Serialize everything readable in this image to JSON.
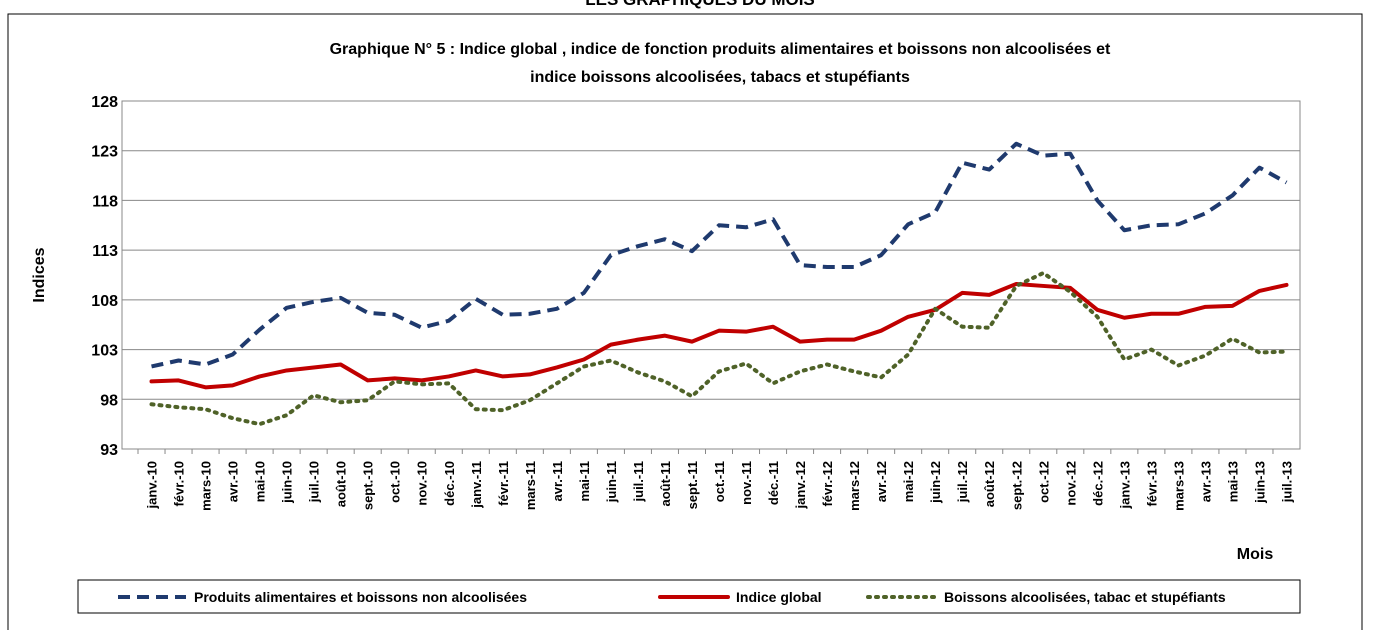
{
  "page_title": "LES GRAPHIQUES DU MOIS",
  "chart_data": {
    "type": "line",
    "title": "Graphique N° 5 : Indice global , indice de fonction produits alimentaires et boissons non alcoolisées et",
    "subtitle": "indice boissons alcoolisées, tabacs et stupéfiants",
    "y_label": "Indices",
    "x_label": "Mois",
    "categories": [
      "janv.-10",
      "févr.-10",
      "mars-10",
      "avr.-10",
      "mai-10",
      "juin-10",
      "juil.-10",
      "août-10",
      "sept.-10",
      "oct.-10",
      "nov.-10",
      "déc.-10",
      "janv.-11",
      "févr.-11",
      "mars-11",
      "avr.-11",
      "mai-11",
      "juin-11",
      "juil.-11",
      "août-11",
      "sept.-11",
      "oct.-11",
      "nov.-11",
      "déc.-11",
      "janv.-12",
      "févr.-12",
      "mars-12",
      "avr.-12",
      "mai-12",
      "juin-12",
      "juil.-12",
      "août-12",
      "sept.-12",
      "oct.-12",
      "nov.-12",
      "déc.-12",
      "janv.-13",
      "févr.-13",
      "mars-13",
      "avr.-13",
      "mai-13",
      "juin-13",
      "juil.-13"
    ],
    "ylim": [
      93,
      128
    ],
    "yticks": [
      93,
      98,
      103,
      108,
      113,
      118,
      123,
      128
    ],
    "grid": true,
    "series": [
      {
        "name": "Produits alimentaires et boissons non alcoolisées",
        "color": "#1f3a6e",
        "dash": "dashed",
        "values": [
          101.3,
          101.9,
          101.5,
          102.5,
          105,
          107.2,
          107.8,
          108.2,
          106.7,
          106.5,
          105.2,
          105.9,
          108.1,
          106.5,
          106.6,
          107.1,
          108.7,
          112.5,
          113.4,
          114.1,
          112.9,
          115.5,
          115.3,
          116.1,
          111.5,
          111.3,
          111.3,
          112.5,
          115.6,
          116.8,
          121.8,
          121.1,
          123.7,
          122.5,
          122.7,
          118,
          115,
          115.5,
          115.6,
          116.7,
          118.5,
          121.3,
          119.8
        ]
      },
      {
        "name": "Indice global",
        "color": "#c00000",
        "dash": "solid",
        "values": [
          99.8,
          99.9,
          99.2,
          99.4,
          100.3,
          100.9,
          101.2,
          101.5,
          99.9,
          100.1,
          99.9,
          100.3,
          100.9,
          100.3,
          100.5,
          101.2,
          102,
          103.5,
          104,
          104.4,
          103.8,
          104.9,
          104.8,
          105.3,
          103.8,
          104,
          104,
          104.9,
          106.3,
          107,
          108.7,
          108.5,
          109.6,
          109.4,
          109.2,
          107,
          106.2,
          106.6,
          106.6,
          107.3,
          107.4,
          108.9,
          109.5
        ]
      },
      {
        "name": "Boissons alcoolisées, tabac et stupéfiants",
        "color": "#4f6228",
        "dash": "dotted",
        "values": [
          97.5,
          97.2,
          97,
          96.1,
          95.5,
          96.4,
          98.4,
          97.7,
          97.9,
          99.8,
          99.5,
          99.6,
          97,
          96.9,
          97.9,
          99.6,
          101.3,
          101.9,
          100.7,
          99.8,
          98.3,
          100.8,
          101.6,
          99.6,
          100.8,
          101.5,
          100.8,
          100.2,
          102.5,
          107.1,
          105.3,
          105.2,
          109.4,
          110.7,
          108.8,
          106.3,
          102,
          103,
          101.4,
          102.4,
          104.1,
          102.7,
          102.8
        ]
      }
    ]
  }
}
